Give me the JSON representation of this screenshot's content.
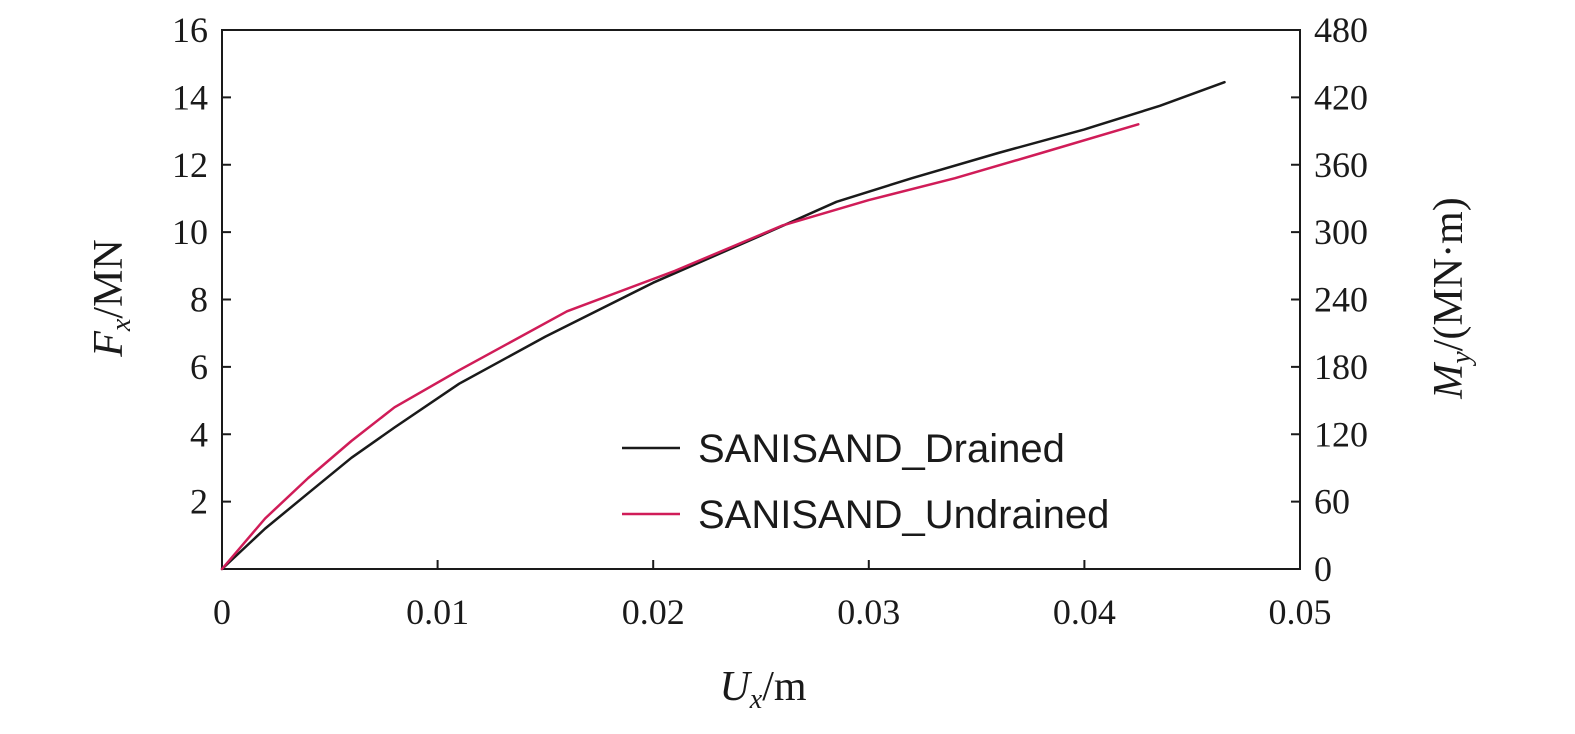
{
  "chart_data": {
    "type": "line",
    "x_axis": {
      "label_main": "U",
      "label_sub": "x",
      "label_unit": "/m",
      "range": [
        0,
        0.05
      ],
      "ticks": [
        0,
        0.01,
        0.02,
        0.03,
        0.04,
        0.05
      ],
      "tick_labels": [
        "0",
        "0.01",
        "0.02",
        "0.03",
        "0.04",
        "0.05"
      ]
    },
    "y_axis_left": {
      "label_main": "F",
      "label_sub": "x",
      "label_unit": "/MN",
      "range": [
        0,
        16
      ],
      "ticks": [
        2,
        4,
        6,
        8,
        10,
        12,
        14,
        16
      ],
      "tick_labels": [
        "2",
        "4",
        "6",
        "8",
        "10",
        "12",
        "14",
        "16"
      ]
    },
    "y_axis_right": {
      "label_main": "M",
      "label_sub": "y",
      "label_unit": "/(MN·m)",
      "range": [
        0,
        480
      ],
      "ticks": [
        0,
        60,
        120,
        180,
        240,
        300,
        360,
        420,
        480
      ],
      "tick_labels": [
        "0",
        "60",
        "120",
        "180",
        "240",
        "300",
        "360",
        "420",
        "480"
      ]
    },
    "legend_placement": "lower-right",
    "grid": false,
    "series": [
      {
        "name": "SANISAND_Drained",
        "color": "#1a1a1a",
        "x": [
          0,
          0.002,
          0.004,
          0.006,
          0.008,
          0.011,
          0.015,
          0.02,
          0.025,
          0.0285,
          0.032,
          0.036,
          0.04,
          0.0435,
          0.0465
        ],
        "y": [
          0,
          1.2,
          2.25,
          3.3,
          4.2,
          5.5,
          6.9,
          8.5,
          9.9,
          10.9,
          11.6,
          12.35,
          13.05,
          13.75,
          14.45
        ]
      },
      {
        "name": "SANISAND_Undrained",
        "color": "#d01c58",
        "x": [
          0,
          0.002,
          0.004,
          0.006,
          0.008,
          0.011,
          0.016,
          0.021,
          0.026,
          0.03,
          0.034,
          0.038,
          0.0425
        ],
        "y": [
          0,
          1.5,
          2.7,
          3.8,
          4.8,
          5.9,
          7.65,
          8.85,
          10.2,
          10.95,
          11.6,
          12.35,
          13.2
        ]
      }
    ]
  }
}
